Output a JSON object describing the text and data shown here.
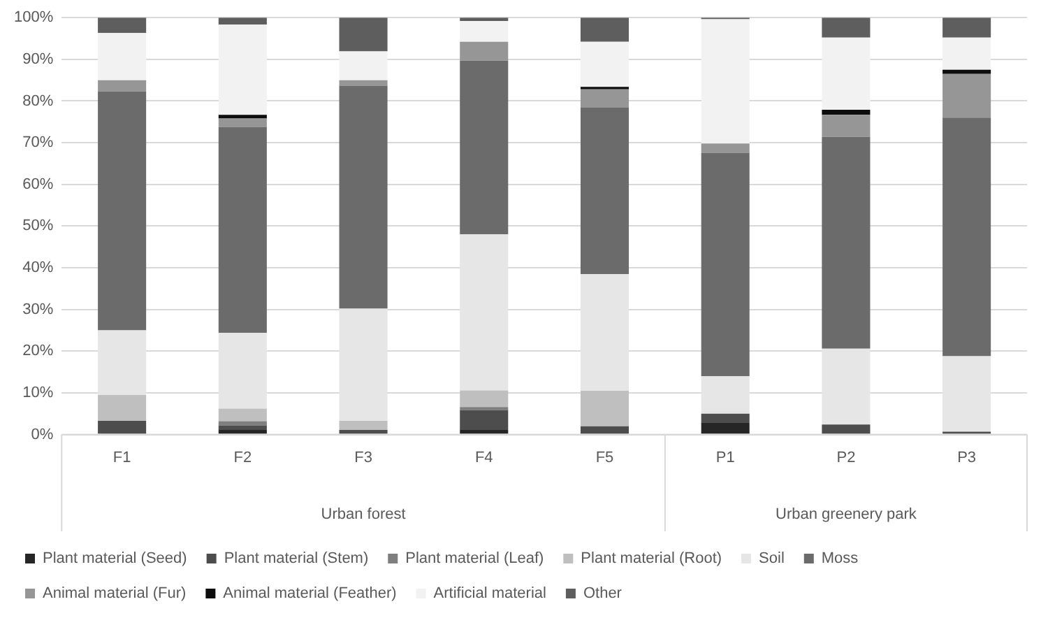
{
  "chart_data": {
    "type": "bar",
    "stacked": true,
    "categories": [
      "F1",
      "F2",
      "F3",
      "F4",
      "F5",
      "P1",
      "P2",
      "P3"
    ],
    "series": [
      {
        "name": "Plant material (Seed)",
        "color": "#262626",
        "values": [
          0,
          1.1,
          0,
          1.1,
          0,
          2.9,
          0,
          0
        ]
      },
      {
        "name": "Plant material (Stem)",
        "color": "#4d4d4d",
        "values": [
          3.3,
          1.1,
          1.1,
          4.8,
          2.0,
          2.1,
          2.4,
          0.7
        ]
      },
      {
        "name": "Plant material (Leaf)",
        "color": "#7f7f7f",
        "values": [
          0,
          1.0,
          0,
          0.7,
          0,
          0,
          0,
          0
        ]
      },
      {
        "name": "Plant material (Root)",
        "color": "#bfbfbf",
        "values": [
          6.2,
          3.0,
          2.2,
          4.0,
          8.5,
          0,
          0,
          0
        ]
      },
      {
        "name": "Soil",
        "color": "#e6e6e6",
        "values": [
          15.5,
          18.2,
          26.9,
          37.4,
          28.0,
          9.0,
          18.2,
          18.1
        ]
      },
      {
        "name": "Moss",
        "color": "#6b6b6b",
        "values": [
          57.3,
          49.4,
          53.5,
          41.7,
          39.9,
          53.6,
          50.8,
          57.2
        ]
      },
      {
        "name": "Animal material (Fur)",
        "color": "#969696",
        "values": [
          2.7,
          2.0,
          1.3,
          4.5,
          4.4,
          2.2,
          5.3,
          10.5
        ]
      },
      {
        "name": "Animal material (Feather)",
        "color": "#0d0d0d",
        "values": [
          0,
          0.9,
          0,
          0,
          0.6,
          0,
          1.2,
          1.0
        ]
      },
      {
        "name": "Artificial material",
        "color": "#f2f2f2",
        "values": [
          11.3,
          21.6,
          6.9,
          5.0,
          10.8,
          29.8,
          17.3,
          7.7
        ]
      },
      {
        "name": "Other",
        "color": "#5e5e5e",
        "values": [
          3.7,
          1.7,
          8.1,
          0.8,
          5.8,
          0.4,
          4.8,
          4.8
        ]
      }
    ],
    "ylim": [
      0,
      100
    ],
    "yticks": [
      {
        "value": 0,
        "label": "0%"
      },
      {
        "value": 10,
        "label": "10%"
      },
      {
        "value": 20,
        "label": "20%"
      },
      {
        "value": 30,
        "label": "30%"
      },
      {
        "value": 40,
        "label": "40%"
      },
      {
        "value": 50,
        "label": "50%"
      },
      {
        "value": 60,
        "label": "60%"
      },
      {
        "value": 70,
        "label": "70%"
      },
      {
        "value": 80,
        "label": "80%"
      },
      {
        "value": 90,
        "label": "90%"
      },
      {
        "value": 100,
        "label": "100%"
      }
    ],
    "annotations": [
      "Urban forest",
      "Urban greenery park"
    ],
    "grid": "y",
    "legend": "bottom"
  }
}
